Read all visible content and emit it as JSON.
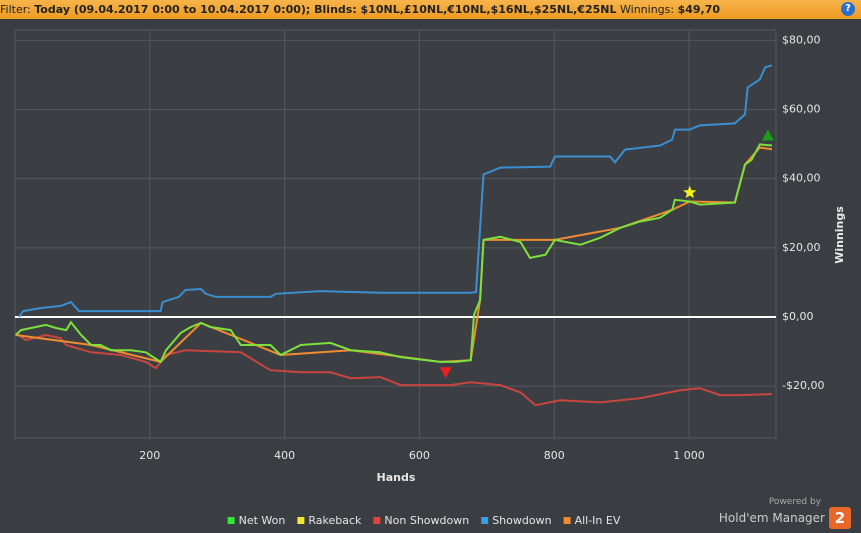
{
  "header": {
    "label": "Filter:",
    "filter": "Today (09.04.2017 0:00 to 10.04.2017 0:00); Blinds: $10NL,£10NL,€10NL,$16NL,$25NL,€25NL",
    "winnings_label": "Winnings:",
    "winnings": "$49,70",
    "help": "?"
  },
  "branding": {
    "powered": "Powered by",
    "product": "Hold'em Manager",
    "version": "2"
  },
  "chart_data": {
    "type": "line",
    "xlabel": "Hands",
    "ylabel": "Winnings",
    "xlim": [
      0,
      1129
    ],
    "ylim": [
      -35,
      83
    ],
    "xticks": [
      200,
      400,
      600,
      800,
      {
        "value": 1000,
        "label": "1 000"
      }
    ],
    "yticks": [
      {
        "value": 80,
        "label": "$80,00"
      },
      {
        "value": 60,
        "label": "$60,00"
      },
      {
        "value": 40,
        "label": "$40,00"
      },
      {
        "value": 20,
        "label": "$20,00"
      },
      {
        "value": 0,
        "label": "$0,00"
      },
      {
        "value": -20,
        "label": "-$20,00"
      }
    ],
    "grid": true,
    "zero_line": true,
    "legend": [
      {
        "name": "Net Won",
        "color": "#33e633"
      },
      {
        "name": "Rakeback",
        "color": "#f0e830"
      },
      {
        "name": "Non Showdown",
        "color": "#e0443c"
      },
      {
        "name": "Showdown",
        "color": "#3a9ee0"
      },
      {
        "name": "All-In EV",
        "color": "#f08c30"
      }
    ],
    "series": [
      {
        "name": "Showdown",
        "color": "#3a8fd0",
        "x": [
          6,
          12,
          39,
          68,
          83,
          95,
          216,
          219,
          243,
          253,
          276,
          283,
          298,
          379,
          387,
          453,
          542,
          676,
          684,
          695,
          705,
          720,
          794,
          801,
          883,
          890,
          905,
          927,
          957,
          975,
          979,
          1001,
          1016,
          1068,
          1083,
          1087,
          1105,
          1113,
          1123
        ],
        "values": [
          0,
          1.7,
          2.6,
          3.2,
          4.3,
          1.7,
          1.7,
          4.3,
          5.8,
          7.8,
          8.1,
          6.7,
          5.8,
          5.8,
          6.7,
          7.5,
          7.0,
          7.0,
          7.2,
          41.2,
          42,
          43.2,
          43.5,
          46.4,
          46.4,
          44.7,
          48.4,
          48.9,
          49.6,
          51.3,
          54.2,
          54.2,
          55.4,
          56,
          58.6,
          66.4,
          68.7,
          72.2,
          72.8
        ]
      },
      {
        "name": "Non Showdown",
        "color": "#c8463e",
        "x": [
          1,
          16,
          46,
          68,
          76,
          113,
          157,
          194,
          209,
          224,
          253,
          335,
          379,
          424,
          468,
          498,
          542,
          572,
          646,
          676,
          720,
          750,
          772,
          809,
          868,
          927,
          987,
          1016,
          1046,
          1076,
          1123
        ],
        "values": [
          -4.6,
          -6.7,
          -5.2,
          -6.1,
          -8.1,
          -10.2,
          -11,
          -13,
          -14.8,
          -11,
          -9.6,
          -10.2,
          -15.4,
          -16,
          -16,
          -17.7,
          -17.4,
          -19.7,
          -19.7,
          -18.9,
          -19.7,
          -21.8,
          -25.5,
          -24.1,
          -24.7,
          -23.5,
          -21.2,
          -20.6,
          -22.6,
          -22.6,
          -22.3
        ]
      },
      {
        "name": "All-In EV",
        "color": "#f08c30",
        "x": [
          1,
          113,
          216,
          276,
          394,
          498,
          631,
          676,
          690,
          695,
          801,
          898,
          975,
          1001,
          1068,
          1083,
          1105,
          1123
        ],
        "values": [
          -5.2,
          -8.1,
          -13,
          -1.7,
          -11,
          -9.6,
          -13,
          -12.5,
          4.9,
          22.3,
          22.3,
          25.8,
          31,
          33.4,
          33.1,
          44.1,
          49,
          48.5
        ]
      },
      {
        "name": "Net Won",
        "color": "#7ee03c",
        "x": [
          1,
          9,
          24,
          46,
          61,
          76,
          83,
          98,
          113,
          127,
          142,
          172,
          194,
          216,
          224,
          246,
          261,
          276,
          290,
          320,
          335,
          379,
          394,
          424,
          468,
          498,
          542,
          572,
          631,
          653,
          676,
          681,
          690,
          695,
          720,
          750,
          764,
          787,
          801,
          839,
          868,
          898,
          927,
          957,
          975,
          979,
          1001,
          1016,
          1068,
          1083,
          1093,
          1105,
          1123
        ],
        "values": [
          -5.2,
          -3.8,
          -3.2,
          -2.3,
          -3.2,
          -3.8,
          -1.5,
          -5.2,
          -8.1,
          -8.1,
          -9.6,
          -9.6,
          -10.2,
          -13,
          -9.6,
          -4.6,
          -2.9,
          -1.7,
          -2.9,
          -3.8,
          -8.1,
          -8.1,
          -11,
          -8.1,
          -7.5,
          -9.6,
          -10.2,
          -11.6,
          -13,
          -13,
          -12.5,
          0.6,
          4.9,
          22.3,
          23.2,
          21.7,
          17.1,
          18,
          22.3,
          20.9,
          22.9,
          25.8,
          27.6,
          28.7,
          31,
          33.9,
          33.4,
          32.5,
          33.1,
          44.1,
          45.5,
          49.9,
          49.6
        ]
      }
    ],
    "markers": [
      {
        "x": 639,
        "y": -16,
        "shape": "down",
        "color": "#e82020"
      },
      {
        "x": 1001,
        "y": 36,
        "shape": "star",
        "color": "#f5f020"
      },
      {
        "x": 1117,
        "y": 52.5,
        "shape": "up",
        "color": "#1a9e1a"
      }
    ]
  }
}
